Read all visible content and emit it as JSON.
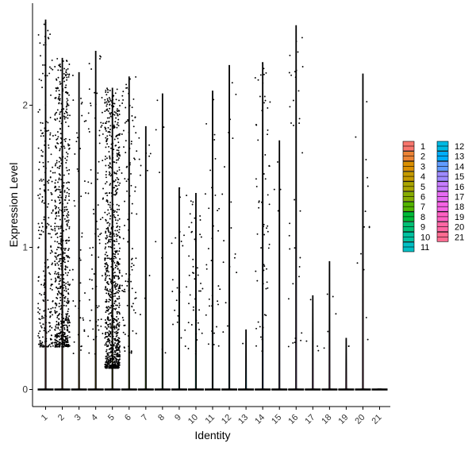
{
  "chart_data": {
    "type": "violin",
    "xlabel": "Identity",
    "ylabel": "Expression Level",
    "categories": [
      "1",
      "2",
      "3",
      "4",
      "5",
      "6",
      "7",
      "8",
      "9",
      "10",
      "11",
      "12",
      "13",
      "14",
      "15",
      "16",
      "17",
      "18",
      "19",
      "20",
      "21"
    ],
    "yticks": [
      0,
      1,
      2
    ],
    "ylim": [
      -0.1,
      2.7
    ],
    "max_values": [
      2.6,
      2.33,
      2.23,
      2.38,
      2.12,
      2.2,
      1.85,
      2.08,
      1.42,
      1.38,
      2.1,
      2.28,
      0.42,
      2.3,
      1.75,
      2.56,
      0.66,
      0.9,
      0.36,
      2.22,
      0.0
    ],
    "dot_density": [
      260,
      700,
      45,
      80,
      900,
      110,
      12,
      8,
      22,
      45,
      35,
      18,
      1,
      65,
      4,
      35,
      4,
      5,
      2,
      14,
      0
    ],
    "colors": [
      "#F8766D",
      "#EB8335",
      "#DA8F00",
      "#C49A00",
      "#A9A400",
      "#86AC00",
      "#53B400",
      "#00BA38",
      "#00BF74",
      "#00C19F",
      "#00BFC4",
      "#00B9E3",
      "#00ADFA",
      "#619CFF",
      "#9E8AFF",
      "#C77CFF",
      "#E76BF3",
      "#F564E3",
      "#FF61C3",
      "#FF67A4",
      "#FF6C91"
    ],
    "legend": {
      "placement": "right",
      "entries": [
        "1",
        "2",
        "3",
        "4",
        "5",
        "6",
        "7",
        "8",
        "9",
        "10",
        "11",
        "12",
        "13",
        "14",
        "15",
        "16",
        "17",
        "18",
        "19",
        "20",
        "21"
      ]
    }
  }
}
